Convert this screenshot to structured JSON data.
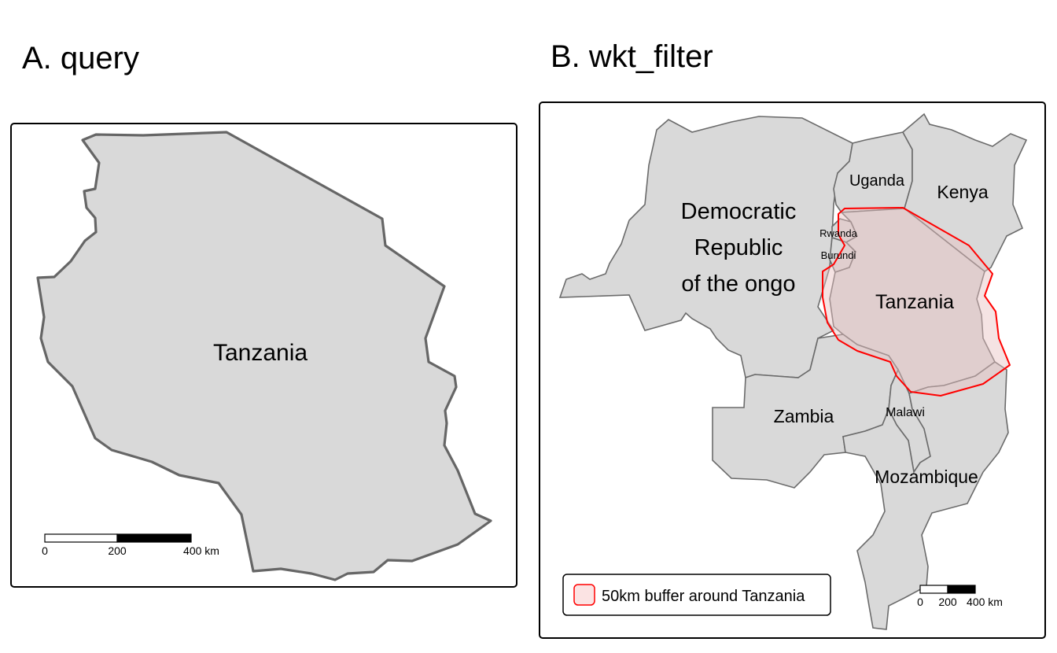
{
  "panels": {
    "a": {
      "title": "A. query",
      "country_label": "Tanzania",
      "scalebar": {
        "ticks": [
          "0",
          "200",
          "400 km"
        ]
      }
    },
    "b": {
      "title": "B. wkt_filter",
      "country_labels": {
        "drc_line1": "Democratic",
        "drc_line2": "Republic",
        "drc_line3": "of the ongo",
        "uganda": "Uganda",
        "kenya": "Kenya",
        "rwanda": "Rwanda",
        "burundi": "Burundi",
        "tanzania": "Tanzania",
        "zambia": "Zambia",
        "malawi": "Malawi",
        "mozambique": "Mozambique"
      },
      "legend": {
        "label": "50km buffer around Tanzania"
      },
      "scalebar": {
        "ticks": [
          "0",
          "200",
          "400 km"
        ]
      }
    }
  },
  "colors": {
    "land_fill": "#d9d9d9",
    "border": "#666666",
    "buffer_outline": "#ff0000",
    "buffer_fill": "#f2d4d4"
  }
}
